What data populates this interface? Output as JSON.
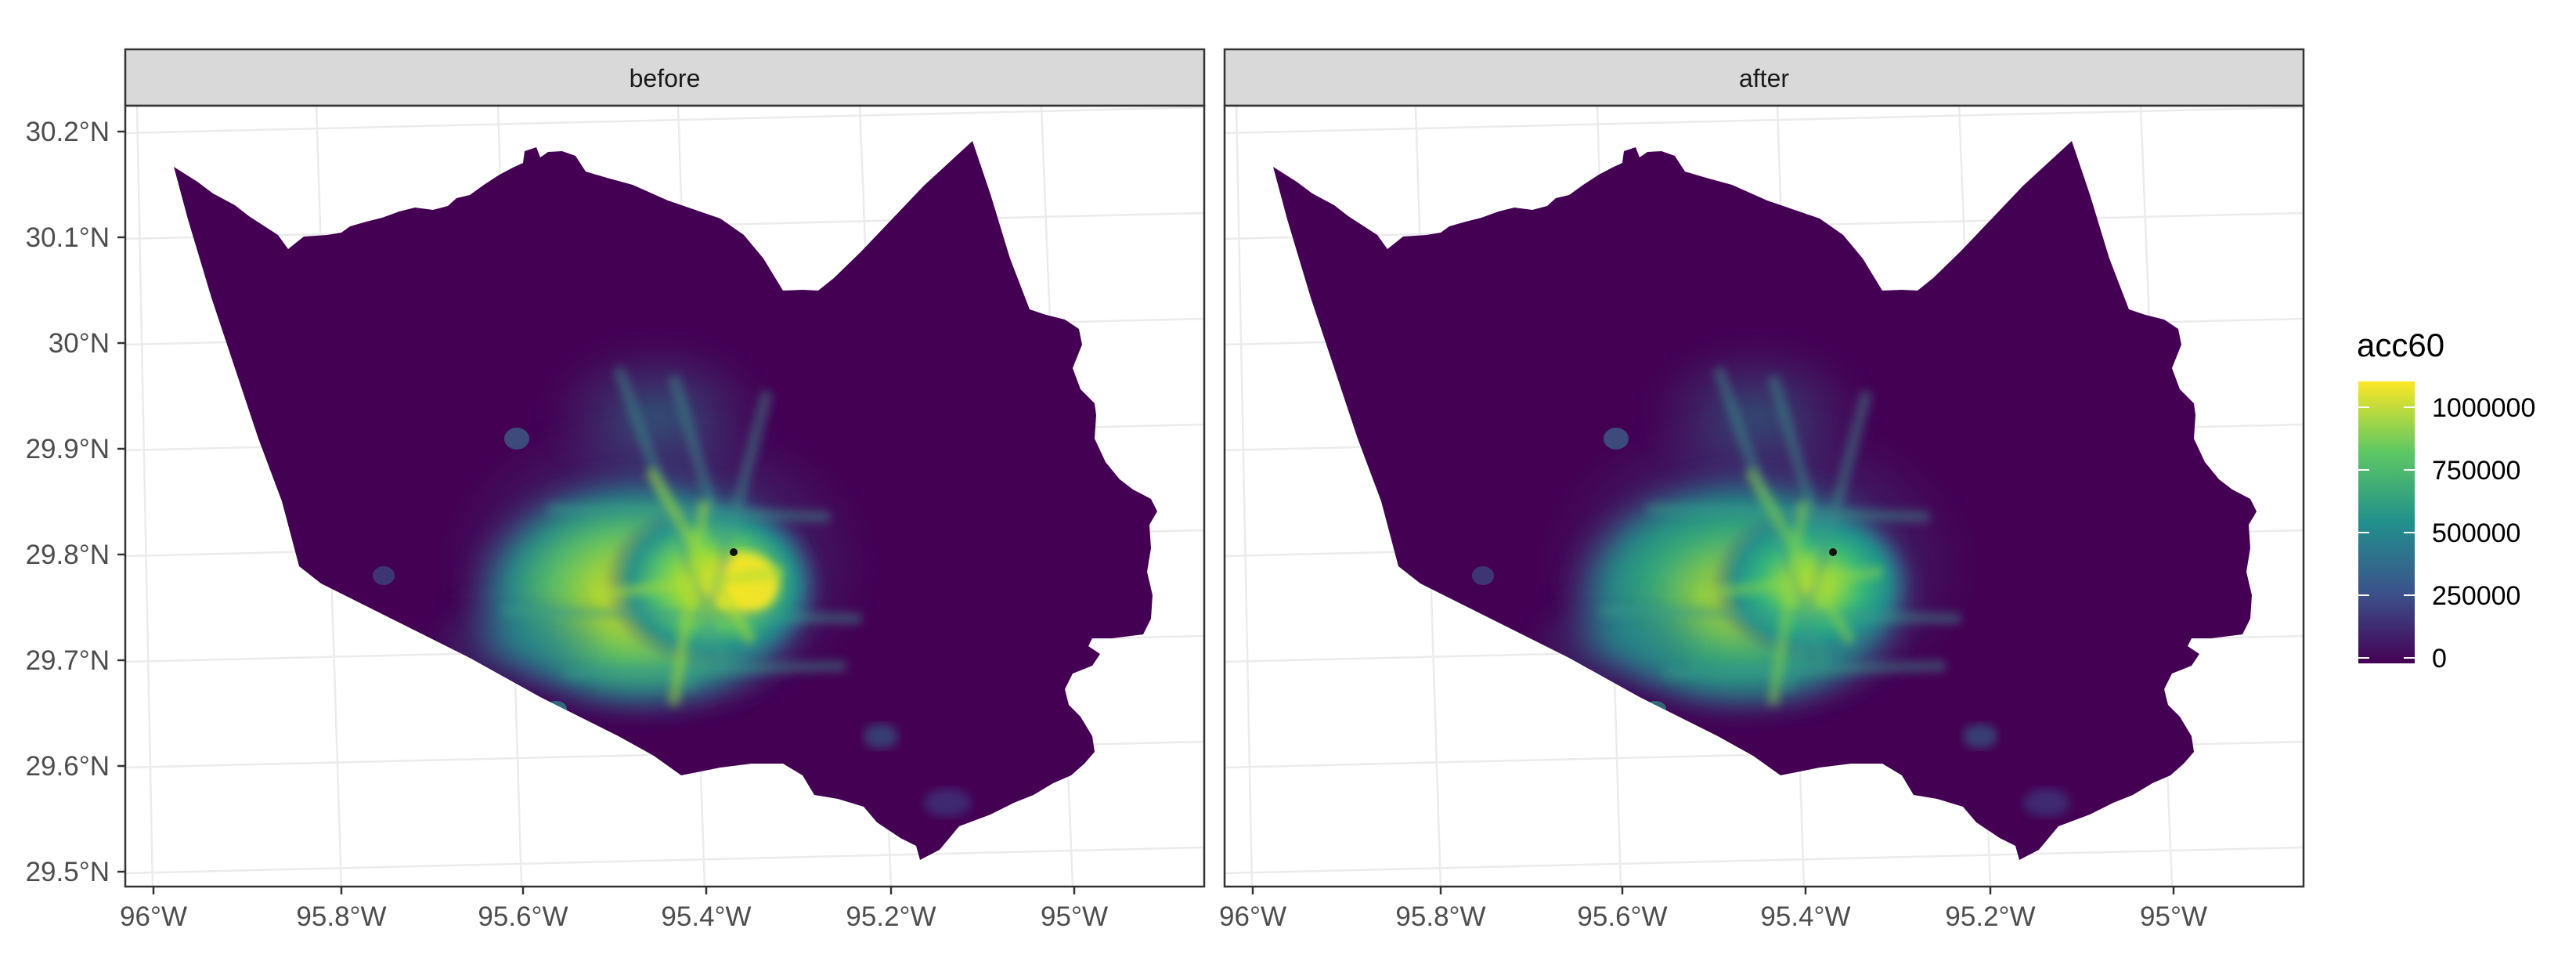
{
  "panels": [
    {
      "label": "before"
    },
    {
      "label": "after"
    }
  ],
  "axes": {
    "x_ticks": [
      "96°W",
      "95.8°W",
      "95.6°W",
      "95.4°W",
      "95.2°W",
      "95°W"
    ],
    "y_ticks": [
      "30.2°N",
      "30.1°N",
      "30°N",
      "29.9°N",
      "29.8°N",
      "29.7°N",
      "29.6°N",
      "29.5°N"
    ]
  },
  "legend": {
    "title": "acc60",
    "labels": [
      "1000000",
      "750000",
      "500000",
      "250000",
      "0"
    ],
    "range": [
      0,
      1100000
    ],
    "colors": [
      "#440154",
      "#3b528b",
      "#21908c",
      "#5dc863",
      "#fde725"
    ]
  },
  "theme": {
    "panel_border": "#333333",
    "strip_fill": "#d9d9d9",
    "grid": "#ebebeb",
    "county_base": "#440154"
  },
  "chart_data": {
    "type": "heatmap",
    "facets": [
      "before",
      "after"
    ],
    "fill_variable": "acc60",
    "fill_range": [
      0,
      1100000
    ],
    "x_range": [
      "96°W",
      "94.9°W"
    ],
    "y_range": [
      "29.5°N",
      "30.2°N"
    ],
    "grid": true,
    "legend_position": "right",
    "hotspots": [
      {
        "lon": -95.37,
        "lat": 29.76,
        "before": 1000000,
        "after": 900000
      },
      {
        "lon": -95.45,
        "lat": 29.74,
        "before": 850000,
        "after": 750000
      },
      {
        "lon": -95.52,
        "lat": 29.73,
        "before": 650000,
        "after": 550000
      },
      {
        "lon": -95.42,
        "lat": 29.85,
        "before": 450000,
        "after": 380000
      },
      {
        "lon": -95.6,
        "lat": 29.78,
        "before": 350000,
        "after": 300000
      }
    ]
  }
}
